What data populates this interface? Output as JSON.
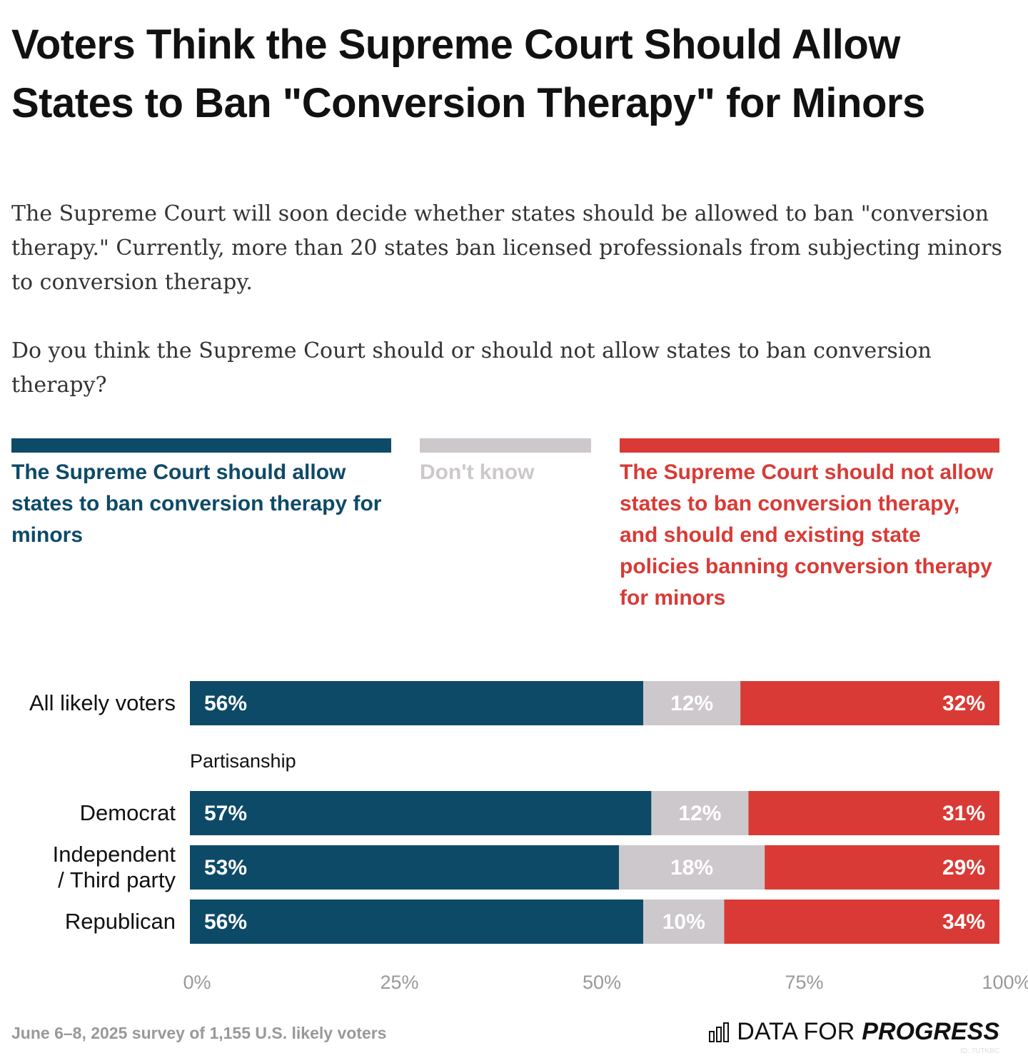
{
  "chart_data": {
    "type": "stacked_bar",
    "title": "Voters Think the Supreme Court Should Allow States to Ban \"Conversion Therapy\" for Minors",
    "subtitle": [
      "The Supreme Court will soon decide whether states should be allowed to ban \"conversion therapy.\" Currently, more than 20 states ban licensed professionals from subjecting minors to conversion therapy.",
      "Do you think the Supreme Court should or should not allow states to ban conversion therapy?"
    ],
    "categories": [
      "All likely voters",
      "Democrat",
      "Independent / Third party",
      "Republican"
    ],
    "group_label": "Partisanship",
    "series": [
      {
        "name": "The Supreme Court should allow states to ban conversion therapy for minors",
        "color": "#0d4a68",
        "values": [
          56,
          57,
          53,
          56
        ],
        "value_labels": [
          "56%",
          "57%",
          "53%",
          "56%"
        ]
      },
      {
        "name": "Don't know",
        "color": "#ccc8cb",
        "values": [
          12,
          12,
          18,
          10
        ],
        "value_labels": [
          "12%",
          "12%",
          "18%",
          "10%"
        ]
      },
      {
        "name": "The Supreme Court should not allow states to ban conversion therapy, and should end existing state policies banning conversion therapy for minors",
        "color": "#d93a35",
        "values": [
          32,
          31,
          29,
          34
        ],
        "value_labels": [
          "32%",
          "31%",
          "29%",
          "34%"
        ]
      }
    ],
    "xlim": [
      0,
      100
    ],
    "xticks": [
      {
        "value": 0,
        "label": "0%"
      },
      {
        "value": 25,
        "label": "25%"
      },
      {
        "value": 50,
        "label": "50%"
      },
      {
        "value": 75,
        "label": "75%"
      },
      {
        "value": 100,
        "label": "100%"
      }
    ],
    "footnote": "June 6–8, 2025 survey of 1,155 U.S. likely voters",
    "brand": {
      "light": "DATA FOR",
      "bold": "PROGRESS"
    },
    "id_label": "ID: 7UTKBC"
  }
}
